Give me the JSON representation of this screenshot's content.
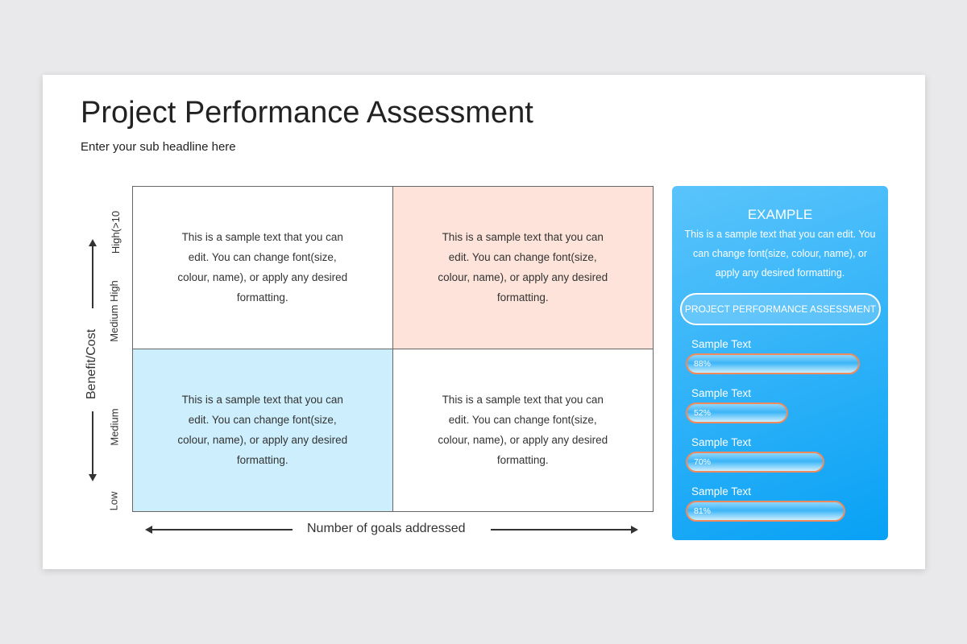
{
  "title": "Project Performance Assessment",
  "subtitle": "Enter your sub headline here",
  "matrix": {
    "cells": [
      "This is a sample text that you can edit. You can change font(size, colour, name), or apply any desired formatting.",
      "This is a sample text that you can edit. You can change font(size, colour, name), or apply any desired formatting.",
      "This is a sample text that you can edit. You can change font(size, colour, name), or apply any desired formatting.",
      "This is a sample text that you can edit. You can change font(size, colour, name), or apply any desired formatting."
    ],
    "y_axis_label": "Benefit/Cost",
    "y_ticks": [
      "Low",
      "Medium",
      "Medium High",
      "High(>10"
    ],
    "x_axis_label": "Number of goals addressed",
    "colors": {
      "top_right": "#fde3d9",
      "bottom_left": "#cdeefd"
    }
  },
  "panel": {
    "heading": "EXAMPLE",
    "text": "This is a sample text that you can edit. You can change font(size, colour, name), or apply any desired formatting.",
    "pill_label": "PROJECT PERFORMANCE ASSESSMENT",
    "bars": [
      {
        "label": "Sample Text",
        "value": 88,
        "text": "88%"
      },
      {
        "label": "Sample Text",
        "value": 52,
        "text": "52%"
      },
      {
        "label": "Sample Text",
        "value": 70,
        "text": "70%"
      },
      {
        "label": "Sample Text",
        "value": 81,
        "text": "81%"
      }
    ],
    "colors": {
      "bar_border": "#f08a5d",
      "panel": "#08a1f5"
    }
  }
}
